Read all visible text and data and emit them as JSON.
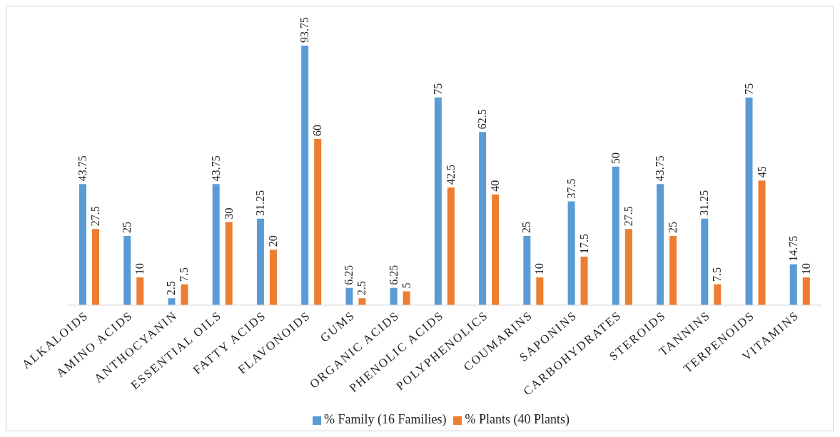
{
  "chart_data": {
    "type": "bar",
    "categories": [
      "ALKALOIDS",
      "AMINO ACIDS",
      "ANTHOCYANIN",
      "ESSENTIAL OILS",
      "FATTY ACIDS",
      "FLAVONOIDS",
      "GUMS",
      "ORGANIC ACIDS",
      "PHENOLIC ACIDS",
      "POLYPHENOLICS",
      "COUMARINS",
      "SAPONINS",
      "CARBOHYDRATES",
      "STEROIDS",
      "TANNINS",
      "TERPENOIDS",
      "VITAMINS"
    ],
    "series": [
      {
        "name": "% Family (16 Families)",
        "color": "#5b9bd5",
        "values": [
          43.75,
          25,
          2.5,
          43.75,
          31.25,
          93.75,
          6.25,
          6.25,
          75,
          62.5,
          25,
          37.5,
          50,
          43.75,
          31.25,
          75,
          14.75
        ]
      },
      {
        "name": "% Plants (40 Plants)",
        "color": "#ed7d31",
        "values": [
          27.5,
          10,
          7.5,
          30,
          20,
          60,
          2.5,
          5,
          42.5,
          40,
          10,
          17.5,
          27.5,
          25,
          7.5,
          45,
          10
        ]
      }
    ],
    "data_labels": true,
    "legend": "bottom",
    "grid": false
  }
}
